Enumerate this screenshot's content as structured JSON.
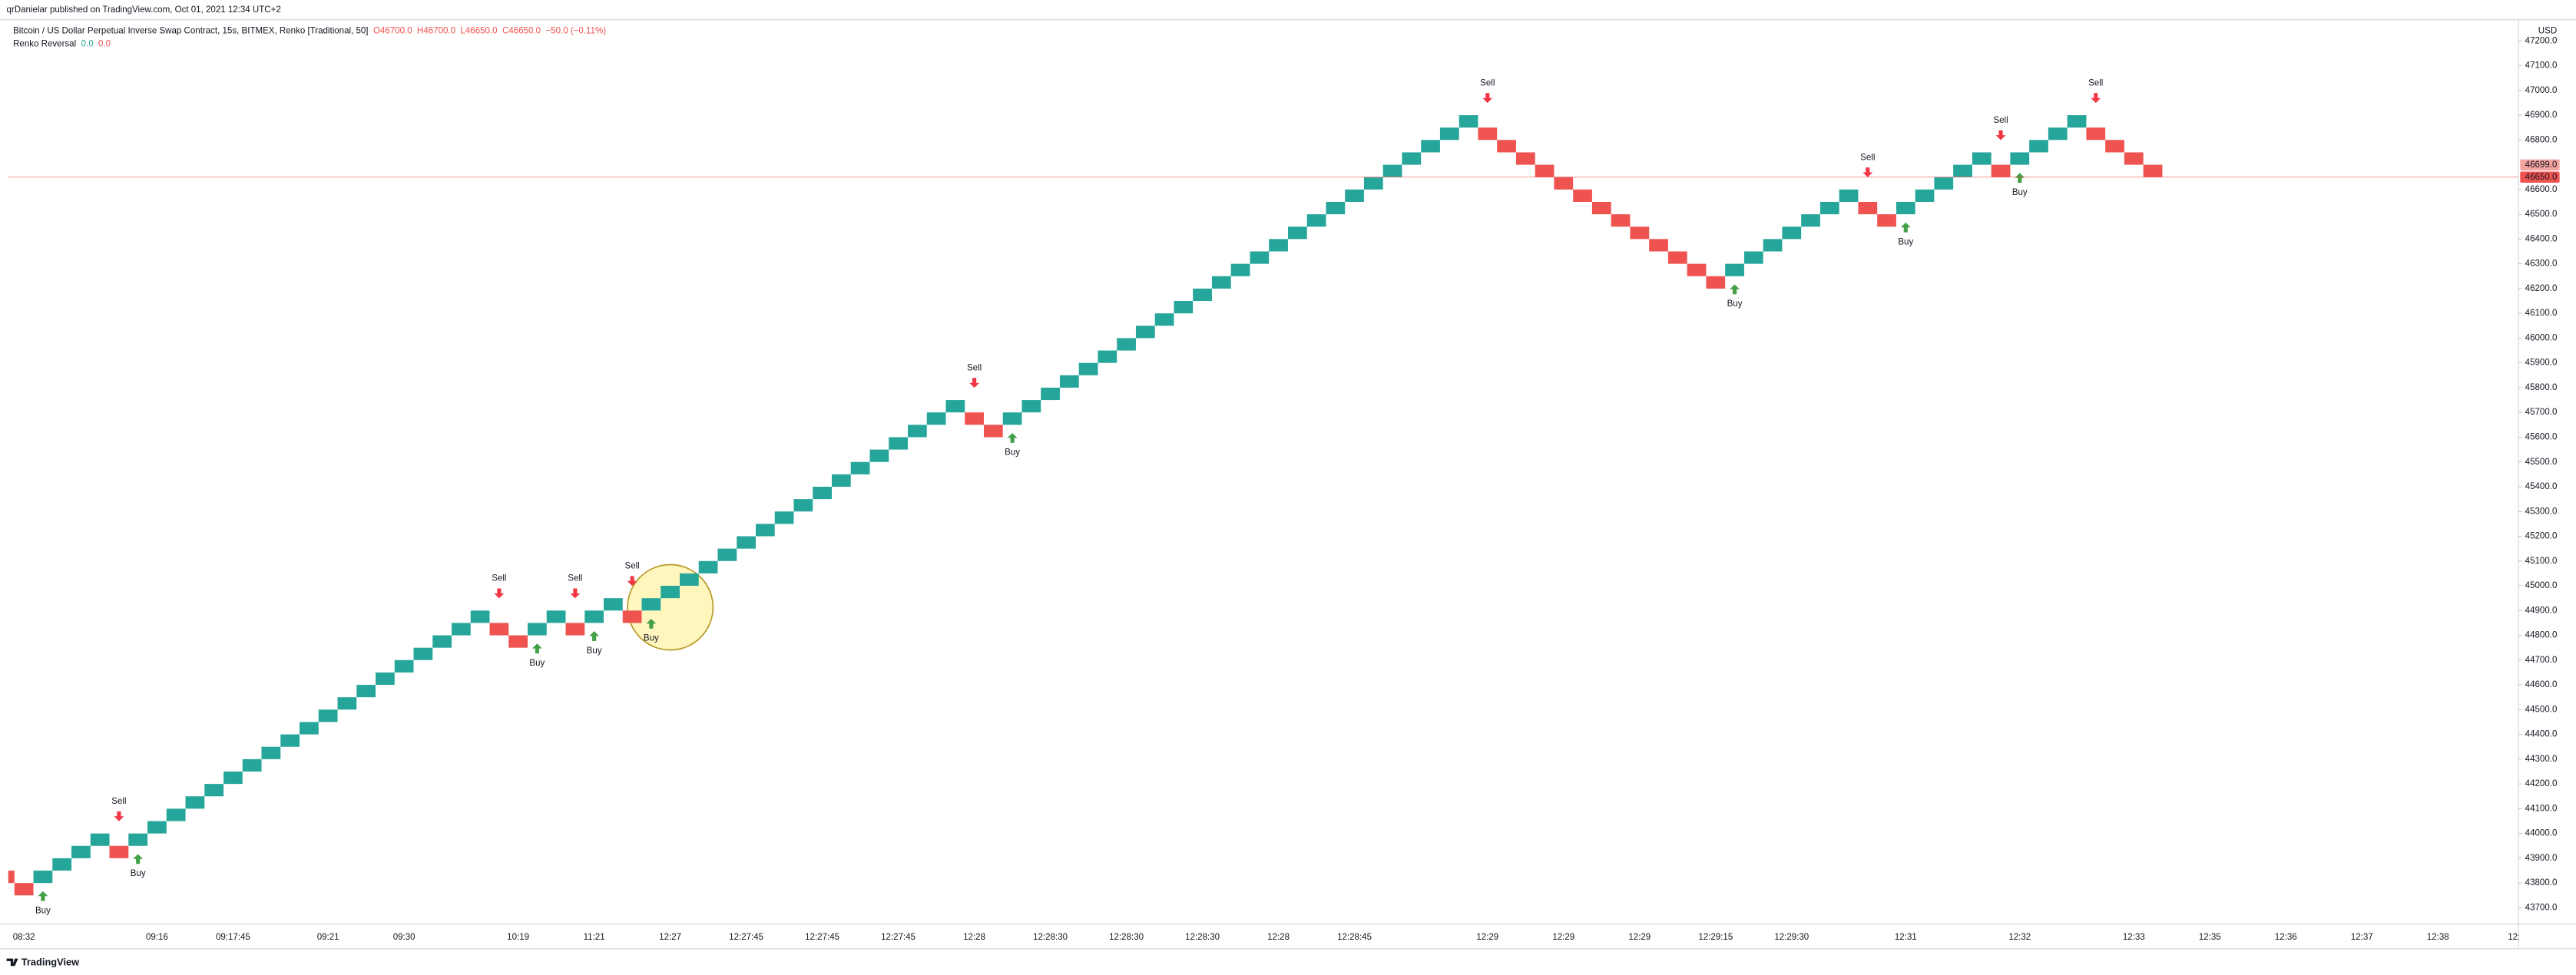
{
  "header": {
    "publisher": "qrDanielar published on TradingView.com, Oct 01, 2021 12:34 UTC+2",
    "footer": "TradingView"
  },
  "chart_data": {
    "type": "renko",
    "title": "Bitcoin / US Dollar Perpetual Inverse Swap Contract, 15s, BITMEX, Renko [Traditional, 50]",
    "ohlc": [
      "O46700.0",
      "H46700.0",
      "L46650.0",
      "C46650.0",
      "−50.0 (−0.11%)"
    ],
    "ohlc_color": "#ef5350",
    "indicator": {
      "name": "Renko Reversal",
      "values": [
        {
          "label": "0.0",
          "color": "#26a69a"
        },
        {
          "label": "0.0",
          "color": "#ef5350"
        }
      ]
    },
    "unit": "USD",
    "up_color": "#26a69a",
    "down_color": "#ef5350",
    "signal_colors": {
      "up": "#43a047",
      "down": "#f23645"
    },
    "grid": false,
    "ylim": [
      43634,
      47279
    ],
    "yticks": [
      {
        "value": 43700,
        "label": "43700.0"
      },
      {
        "value": 43800,
        "label": "43800.0"
      },
      {
        "value": 43900,
        "label": "43900.0"
      },
      {
        "value": 44000,
        "label": "44000.0"
      },
      {
        "value": 44100,
        "label": "44100.0"
      },
      {
        "value": 44200,
        "label": "44200.0"
      },
      {
        "value": 44300,
        "label": "44300.0"
      },
      {
        "value": 44400,
        "label": "44400.0"
      },
      {
        "value": 44500,
        "label": "44500.0"
      },
      {
        "value": 44600,
        "label": "44600.0"
      },
      {
        "value": 44700,
        "label": "44700.0"
      },
      {
        "value": 44800,
        "label": "44800.0"
      },
      {
        "value": 44900,
        "label": "44900.0"
      },
      {
        "value": 45000,
        "label": "45000.0"
      },
      {
        "value": 45100,
        "label": "45100.0"
      },
      {
        "value": 45200,
        "label": "45200.0"
      },
      {
        "value": 45300,
        "label": "45300.0"
      },
      {
        "value": 45400,
        "label": "45400.0"
      },
      {
        "value": 45500,
        "label": "45500.0"
      },
      {
        "value": 45600,
        "label": "45600.0"
      },
      {
        "value": 45700,
        "label": "45700.0"
      },
      {
        "value": 45800,
        "label": "45800.0"
      },
      {
        "value": 45900,
        "label": "45900.0"
      },
      {
        "value": 46000,
        "label": "46000.0"
      },
      {
        "value": 46100,
        "label": "46100.0"
      },
      {
        "value": 46200,
        "label": "46200.0"
      },
      {
        "value": 46300,
        "label": "46300.0"
      },
      {
        "value": 46400,
        "label": "46400.0"
      },
      {
        "value": 46500,
        "label": "46500.0"
      },
      {
        "value": 46600,
        "label": "46600.0"
      },
      {
        "value": 46800,
        "label": "46800.0"
      },
      {
        "value": 46900,
        "label": "46900.0"
      },
      {
        "value": 47000,
        "label": "47000.0"
      },
      {
        "value": 47100,
        "label": "47100.0"
      },
      {
        "value": 47200,
        "label": "47200.0"
      }
    ],
    "price_tags": [
      {
        "value": 46699,
        "label": "46699.0",
        "color": "#f4a3a1"
      },
      {
        "value": 46650,
        "label": "46650.0",
        "color": "#ef5350"
      }
    ],
    "categories": [
      null,
      "08:32",
      null,
      null,
      null,
      null,
      null,
      null,
      "09:16",
      null,
      null,
      null,
      "09:17:45",
      null,
      null,
      null,
      null,
      "09:21",
      null,
      null,
      null,
      "09:30",
      null,
      null,
      null,
      null,
      null,
      "10:19",
      null,
      null,
      null,
      "11:21",
      null,
      null,
      null,
      "12:27",
      null,
      null,
      null,
      "12:27:45",
      null,
      null,
      null,
      "12:27:45",
      null,
      null,
      null,
      "12:27:45",
      null,
      null,
      null,
      "12:28",
      null,
      null,
      null,
      "12:28:30",
      null,
      null,
      null,
      "12:28:30",
      null,
      null,
      null,
      "12:28:30",
      null,
      null,
      null,
      "12:28",
      null,
      null,
      null,
      "12:28:45",
      null,
      null,
      null,
      null,
      null,
      null,
      "12:29",
      null,
      null,
      null,
      "12:29",
      null,
      null,
      null,
      "12:29",
      null,
      null,
      null,
      "12:29:15",
      null,
      null,
      null,
      "12:29:30",
      null,
      null,
      null,
      null,
      null,
      "12:31",
      null,
      null,
      null,
      null,
      null,
      "12:32",
      null,
      null,
      null,
      null,
      null,
      "12:33",
      null,
      null,
      null,
      "12:35",
      null,
      null,
      null,
      "12:36",
      null,
      null,
      null,
      "12:37",
      null,
      null,
      null,
      "12:38",
      null,
      null,
      null,
      "12:"
    ],
    "open": [
      43850,
      43800,
      43800,
      43850,
      43900,
      43950,
      43950,
      43950,
      44000,
      44050,
      44100,
      44150,
      44200,
      44250,
      44300,
      44350,
      44400,
      44450,
      44500,
      44550,
      44600,
      44650,
      44700,
      44750,
      44800,
      44850,
      44850,
      44800,
      44800,
      44850,
      44850,
      44850,
      44900,
      44900,
      44900,
      44950,
      45000,
      45050,
      45100,
      45150,
      45200,
      45250,
      45300,
      45350,
      45400,
      45450,
      45500,
      45550,
      45600,
      45650,
      45700,
      45700,
      45650,
      45650,
      45700,
      45750,
      45800,
      45850,
      45900,
      45950,
      46000,
      46050,
      46100,
      46150,
      46200,
      46250,
      46300,
      46350,
      46400,
      46450,
      46500,
      46550,
      46600,
      46650,
      46700,
      46750,
      46800,
      46850,
      46850,
      46800,
      46750,
      46700,
      46650,
      46600,
      46550,
      46500,
      46450,
      46400,
      46350,
      46300,
      46250,
      46250,
      46300,
      46350,
      46400,
      46450,
      46500,
      46550,
      46550,
      46500,
      46500,
      46550,
      46600,
      46650,
      46700,
      46700,
      46700,
      46750,
      46800,
      46850,
      46850,
      46800,
      46750,
      46700,
      null,
      null,
      null,
      null,
      null,
      null,
      null,
      null,
      null,
      null,
      null,
      null,
      null,
      null,
      null,
      null,
      null,
      null,
      null
    ],
    "close": [
      43800,
      43750,
      43850,
      43900,
      43950,
      44000,
      43900,
      44000,
      44050,
      44100,
      44150,
      44200,
      44250,
      44300,
      44350,
      44400,
      44450,
      44500,
      44550,
      44600,
      44650,
      44700,
      44750,
      44800,
      44850,
      44900,
      44800,
      44750,
      44850,
      44900,
      44800,
      44900,
      44950,
      44850,
      44950,
      45000,
      45050,
      45100,
      45150,
      45200,
      45250,
      45300,
      45350,
      45400,
      45450,
      45500,
      45550,
      45600,
      45650,
      45700,
      45750,
      45650,
      45600,
      45700,
      45750,
      45800,
      45850,
      45900,
      45950,
      46000,
      46050,
      46100,
      46150,
      46200,
      46250,
      46300,
      46350,
      46400,
      46450,
      46500,
      46550,
      46600,
      46650,
      46700,
      46750,
      46800,
      46850,
      46900,
      46800,
      46750,
      46700,
      46650,
      46600,
      46550,
      46500,
      46450,
      46400,
      46350,
      46300,
      46250,
      46200,
      46300,
      46350,
      46400,
      46450,
      46500,
      46550,
      46600,
      46500,
      46450,
      46550,
      46600,
      46650,
      46700,
      46750,
      46650,
      46750,
      46800,
      46850,
      46900,
      46800,
      46750,
      46700,
      46650,
      null,
      null,
      null,
      null,
      null,
      null,
      null,
      null,
      null,
      null,
      null,
      null,
      null,
      null,
      null,
      null,
      null,
      null,
      null
    ],
    "signals": [
      null,
      null,
      "Buy",
      null,
      null,
      null,
      "Sell",
      "Buy",
      null,
      null,
      null,
      null,
      null,
      null,
      null,
      null,
      null,
      null,
      null,
      null,
      null,
      null,
      null,
      null,
      null,
      null,
      "Sell",
      null,
      "Buy",
      null,
      "Sell",
      "Buy",
      null,
      "Sell",
      "Buy",
      null,
      null,
      null,
      null,
      null,
      null,
      null,
      null,
      null,
      null,
      null,
      null,
      null,
      null,
      null,
      null,
      "Sell",
      null,
      "Buy",
      null,
      null,
      null,
      null,
      null,
      null,
      null,
      null,
      null,
      null,
      null,
      null,
      null,
      null,
      null,
      null,
      null,
      null,
      null,
      null,
      null,
      null,
      null,
      null,
      "Sell",
      null,
      null,
      null,
      null,
      null,
      null,
      null,
      null,
      null,
      null,
      null,
      null,
      "Buy",
      null,
      null,
      null,
      null,
      null,
      null,
      "Sell",
      null,
      "Buy",
      null,
      null,
      null,
      null,
      "Sell",
      "Buy",
      null,
      null,
      null,
      "Sell",
      null,
      null,
      null,
      null,
      null,
      null,
      null,
      null,
      null,
      null,
      null,
      null,
      null,
      null,
      null,
      null,
      null,
      null,
      null,
      null,
      null,
      null
    ]
  }
}
